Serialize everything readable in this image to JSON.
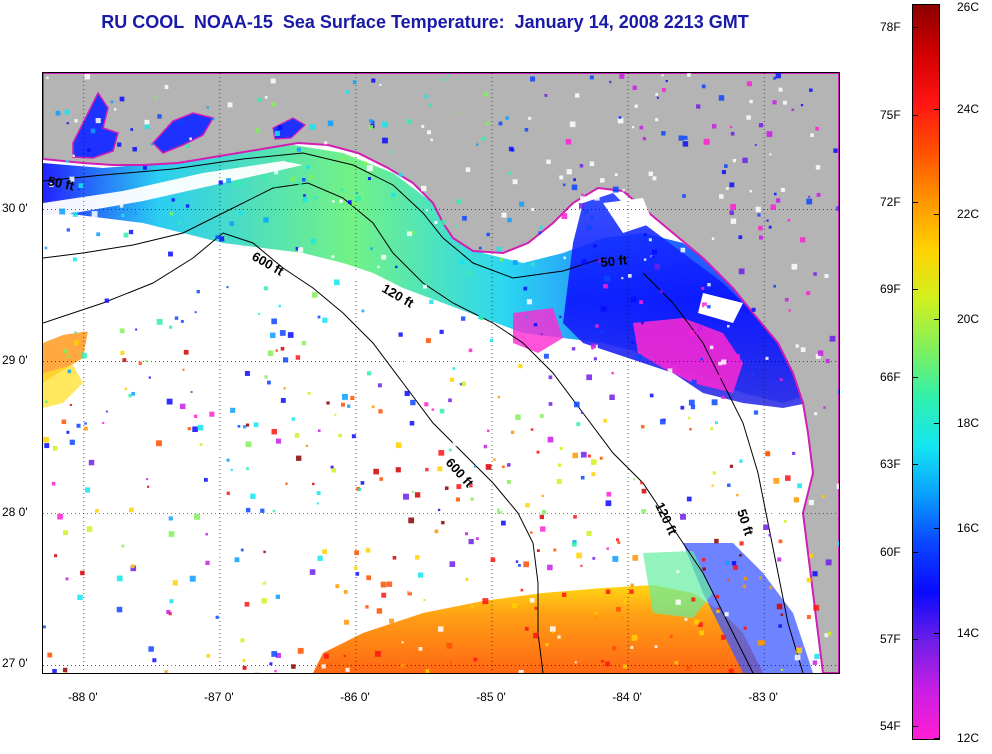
{
  "title": "RU COOL  NOAA-15  Sea Surface Temperature:  January 14, 2008 2213 GMT",
  "map": {
    "lat_range": [
      26.95,
      30.9
    ],
    "lon_range": [
      -88.3,
      -82.45
    ],
    "lat_ticks": [
      {
        "value": 30,
        "label": "30 0'"
      },
      {
        "value": 29,
        "label": "29 0'"
      },
      {
        "value": 28,
        "label": "28 0'"
      },
      {
        "value": 27,
        "label": "27 0'"
      }
    ],
    "lon_ticks": [
      {
        "value": -88,
        "label": "-88 0'"
      },
      {
        "value": -87,
        "label": "-87 0'"
      },
      {
        "value": -86,
        "label": "-86 0'"
      },
      {
        "value": -85,
        "label": "-85 0'"
      },
      {
        "value": -84,
        "label": "-84 0'"
      },
      {
        "value": -83,
        "label": "-83 0'"
      }
    ],
    "depth_labels": [
      "50 ft",
      "600 ft",
      "120 ft",
      "50 ft",
      "600 ft",
      "120 ft",
      "50 ft"
    ],
    "land_color": "#b4b4b4",
    "cloud_color": "#ffffff",
    "contour_color": "#000000",
    "coast_edge_color": "#d21eb4"
  },
  "colorbar": {
    "celsius_ticks": [
      "26C",
      "24C",
      "22C",
      "20C",
      "18C",
      "16C",
      "14C",
      "12C"
    ],
    "fahrenheit_ticks": [
      "78F",
      "75F",
      "72F",
      "69F",
      "66F",
      "63F",
      "60F",
      "57F",
      "54F"
    ],
    "range_c": [
      12,
      26
    ],
    "stops": [
      "#ff1ed2",
      "#c81ee6",
      "#6e1ee6",
      "#0a0aff",
      "#0a46ff",
      "#0aa0ff",
      "#14e6f0",
      "#32f0aa",
      "#82f05a",
      "#d2f01e",
      "#ffd200",
      "#ff9600",
      "#ff5000",
      "#ff1414",
      "#d20000",
      "#8c0000"
    ]
  }
}
